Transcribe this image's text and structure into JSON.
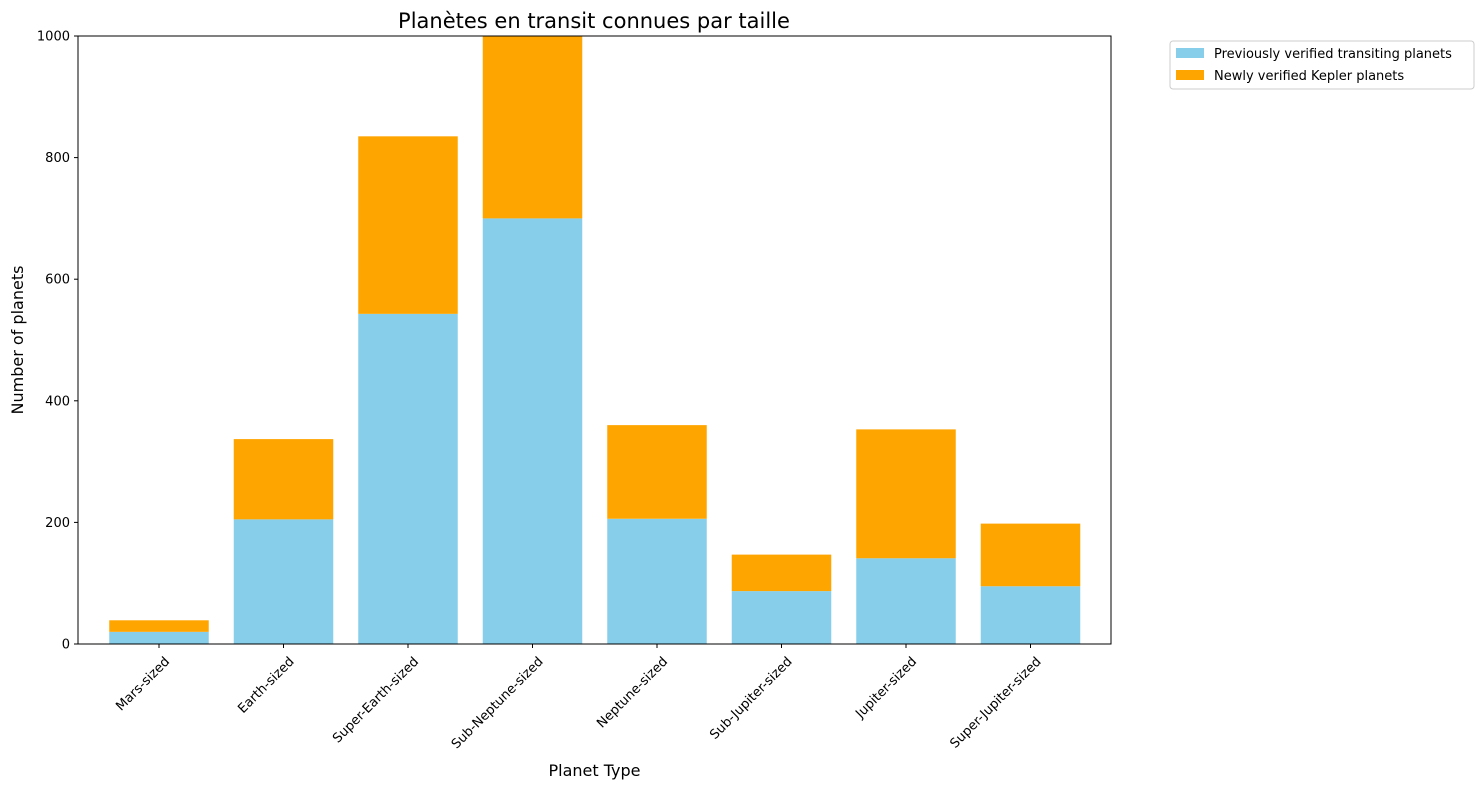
{
  "chart_data": {
    "type": "bar",
    "stacked": true,
    "title": "Planètes en transit connues par taille",
    "xlabel": "Planet Type",
    "ylabel": "Number of planets",
    "ylim": [
      0,
      1000
    ],
    "yticks": [
      0,
      200,
      400,
      600,
      800,
      1000
    ],
    "categories": [
      "Mars-sized",
      "Earth-sized",
      "Super-Earth-sized",
      "Sub-Neptune-sized",
      "Neptune-sized",
      "Sub-Jupiter-sized",
      "Jupiter-sized",
      "Super-Jupiter-sized"
    ],
    "series": [
      {
        "name": "Previously verified transiting planets",
        "color": "#87CEEB",
        "values": [
          20,
          205,
          543,
          700,
          206,
          87,
          141,
          95
        ]
      },
      {
        "name": "Newly verified Kepler planets",
        "color": "#FFA500",
        "values": [
          19,
          132,
          292,
          300,
          154,
          60,
          212,
          103
        ]
      }
    ],
    "legend_position": "outside-top-right",
    "grid": false
  }
}
